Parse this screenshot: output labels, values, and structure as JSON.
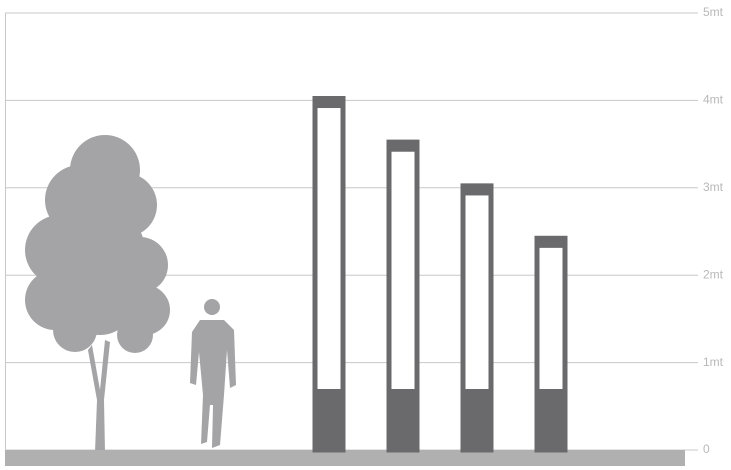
{
  "chart_data": {
    "type": "bar",
    "categories": [
      null,
      null,
      null,
      null
    ],
    "values": [
      4.05,
      3.55,
      3.05,
      2.45
    ],
    "color": "#6a6a6c",
    "ylim": [
      0,
      5
    ],
    "yticks": [
      0,
      {
        "value": 1,
        "label": "1mt"
      },
      {
        "value": 2,
        "label": "2mt"
      },
      {
        "value": 3,
        "label": "3mt"
      },
      {
        "value": 4,
        "label": "4mt"
      },
      {
        "value": 5,
        "label": "5mt"
      }
    ],
    "grid": true
  }
}
